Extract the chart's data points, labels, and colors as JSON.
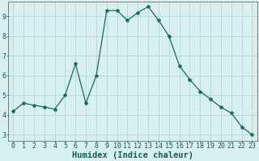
{
  "x": [
    0,
    1,
    2,
    3,
    4,
    5,
    6,
    7,
    8,
    9,
    10,
    11,
    12,
    13,
    14,
    15,
    16,
    17,
    18,
    19,
    20,
    21,
    22,
    23
  ],
  "y": [
    4.2,
    4.6,
    4.5,
    4.4,
    4.3,
    5.0,
    6.6,
    4.6,
    6.0,
    9.3,
    9.3,
    8.8,
    9.2,
    9.5,
    8.8,
    8.0,
    6.5,
    5.8,
    5.2,
    4.8,
    4.4,
    4.1,
    3.4,
    3.0
  ],
  "line_color": "#1a6b5a",
  "marker": "*",
  "marker_size": 3.0,
  "bg_color": "#d7efef",
  "grid_color": "#b8dada",
  "xlabel": "Humidex (Indice chaleur)",
  "xlim": [
    -0.5,
    23.5
  ],
  "ylim": [
    2.7,
    9.75
  ],
  "yticks": [
    3,
    4,
    5,
    6,
    7,
    8,
    9
  ],
  "label_fontsize": 7.5,
  "tick_fontsize": 6.0
}
